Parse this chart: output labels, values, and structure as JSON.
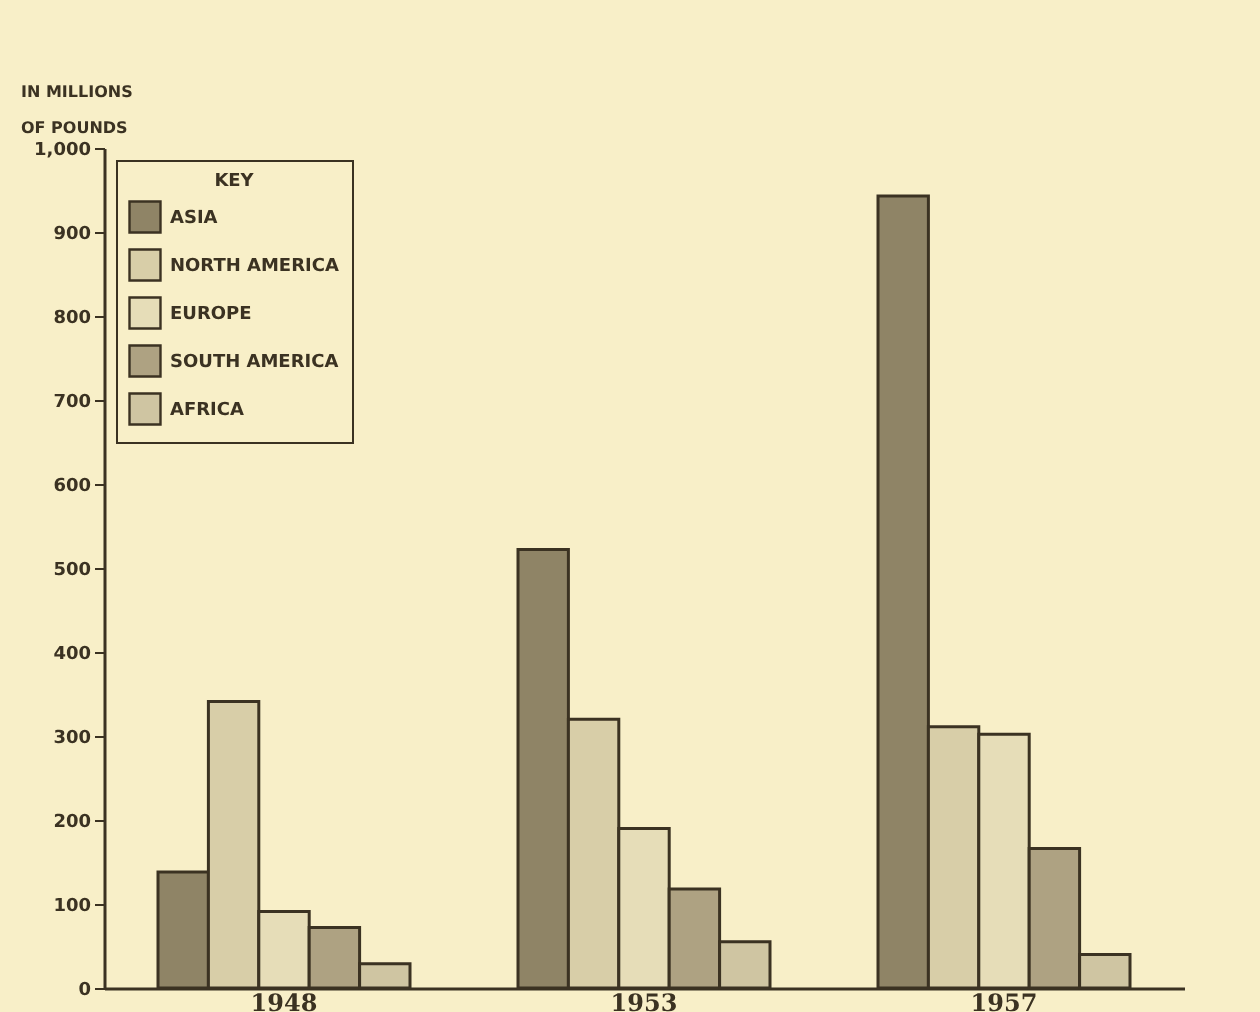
{
  "chart_data": {
    "type": "bar",
    "ylabel": "IN MILLIONS OF POUNDS",
    "legend_title": "KEY",
    "categories": [
      "1948",
      "1953",
      "1957"
    ],
    "series": [
      {
        "name": "ASIA",
        "color": "#8f8466",
        "values": [
          138,
          522,
          943
        ]
      },
      {
        "name": "NORTH AMERICA",
        "color": "#d8cea8",
        "values": [
          341,
          320,
          311
        ]
      },
      {
        "name": "EUROPE",
        "color": "#e6ddb8",
        "values": [
          91,
          190,
          302
        ]
      },
      {
        "name": "SOUTH AMERICA",
        "color": "#aea282",
        "values": [
          72,
          118,
          166
        ]
      },
      {
        "name": "AFRICA",
        "color": "#cfc5a2",
        "values": [
          29,
          55,
          40
        ]
      }
    ],
    "ylim": [
      0,
      1000
    ],
    "yticks": [
      0,
      100,
      200,
      300,
      400,
      500,
      600,
      700,
      800,
      900,
      {
        "value": 1000,
        "label": "1,000"
      }
    ],
    "grid": false,
    "legend": "top left"
  }
}
